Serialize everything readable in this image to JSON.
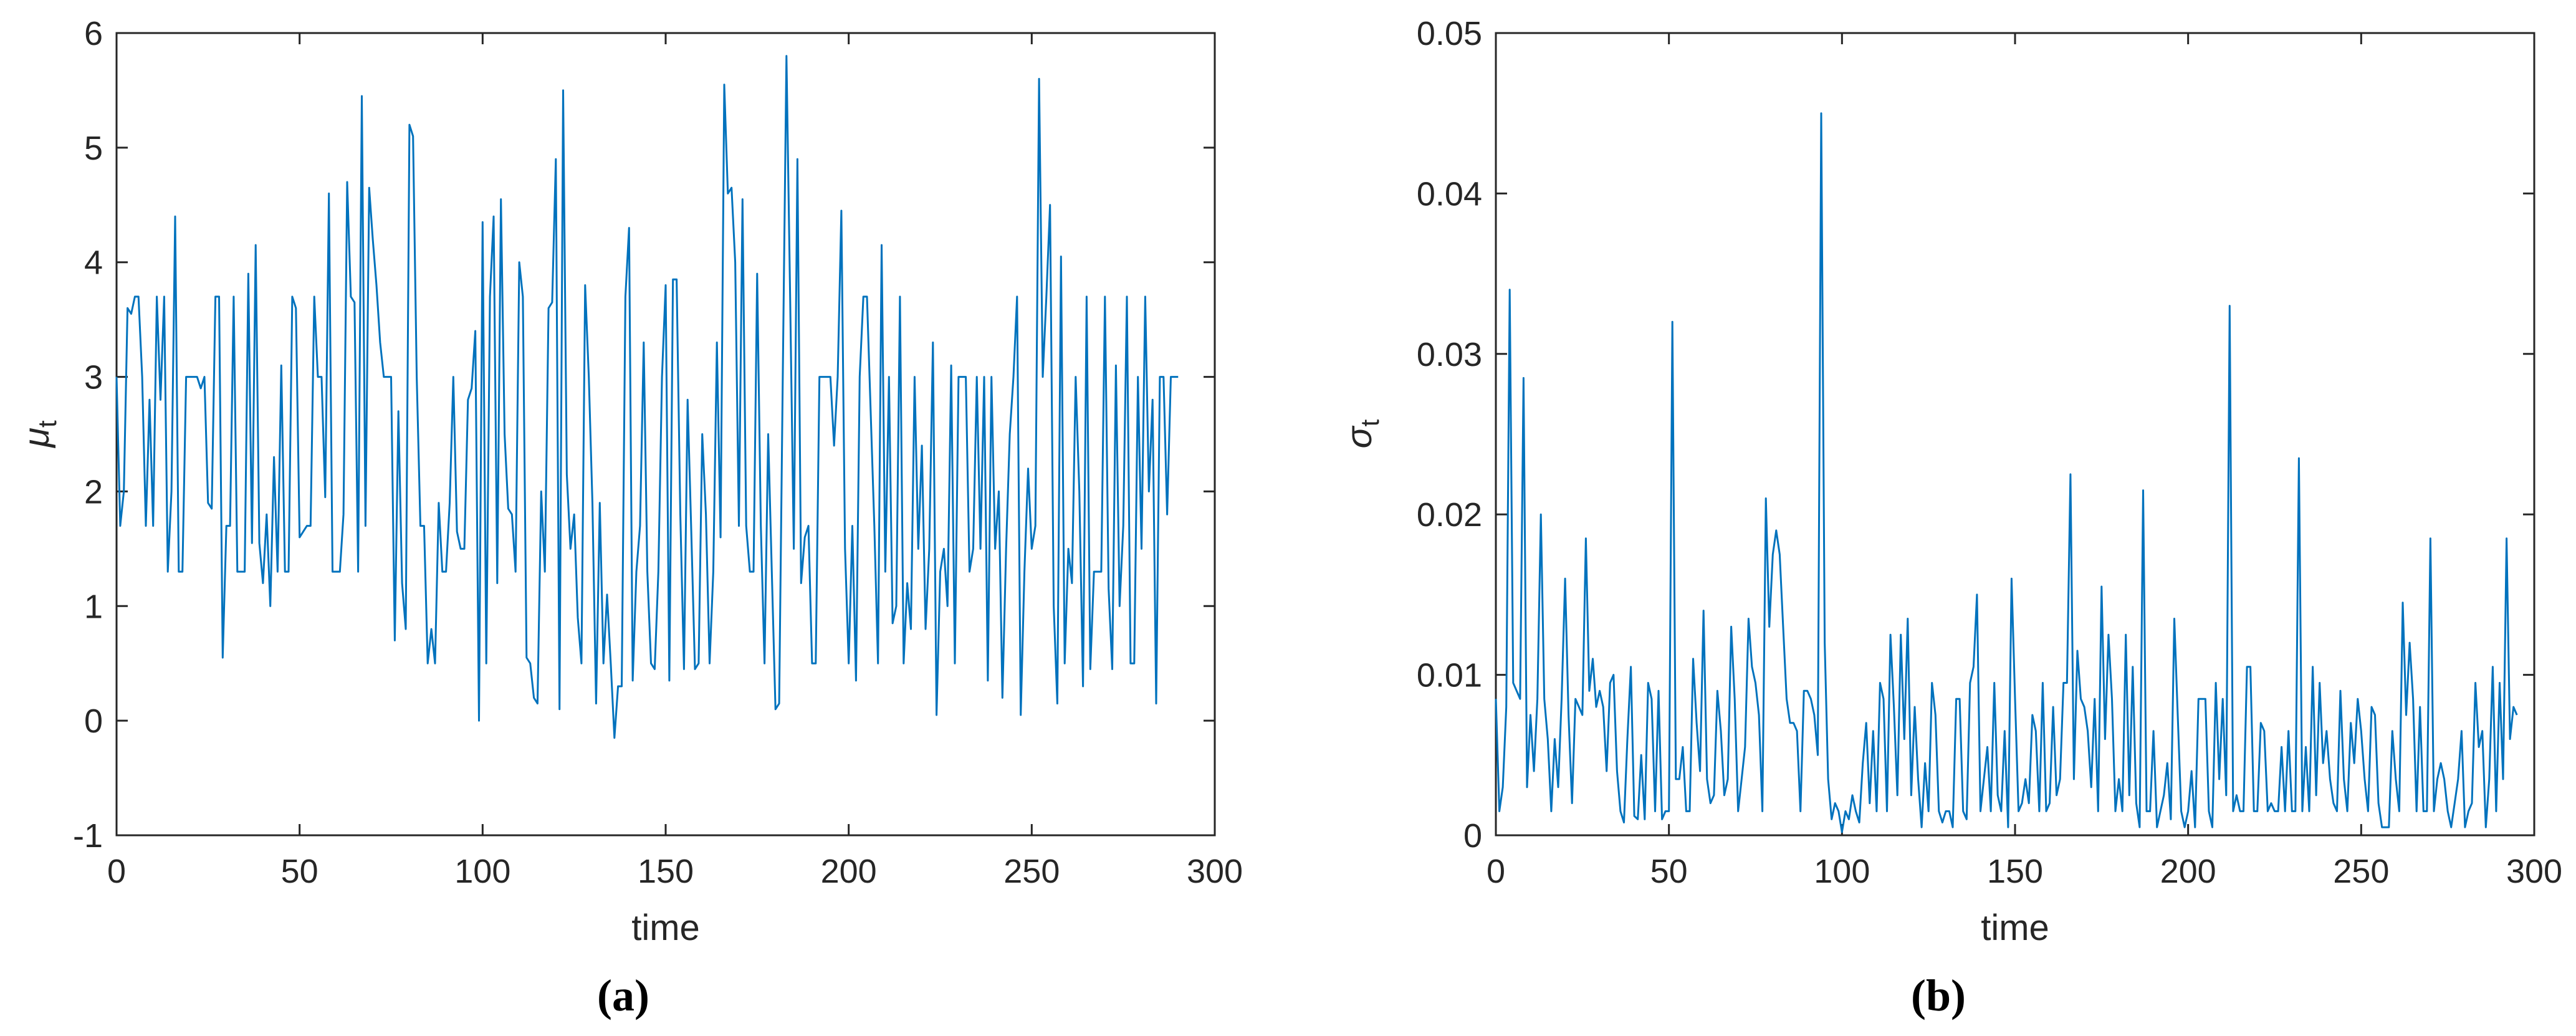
{
  "colors": {
    "series": "#0072BD",
    "axis": "#262626"
  },
  "panels": [
    {
      "sublabel": "(a)",
      "xlabel": "time",
      "ylabel_sym": "μ",
      "ylabel_sub": "t"
    },
    {
      "sublabel": "(b)",
      "xlabel": "time",
      "ylabel_sym": "σ",
      "ylabel_sub": "t"
    }
  ],
  "chart_data": [
    {
      "type": "line",
      "title": "",
      "xlabel": "time",
      "ylabel": "μt",
      "xlim": [
        0,
        300
      ],
      "ylim": [
        -1,
        6
      ],
      "xticks": [
        0,
        50,
        100,
        150,
        200,
        250,
        300
      ],
      "xtick_labels": [
        "0",
        "50",
        "100",
        "150",
        "200",
        "250",
        "300"
      ],
      "yticks": [
        -1,
        0,
        1,
        2,
        3,
        4,
        5,
        6
      ],
      "ytick_labels": [
        "-1",
        "0",
        "1",
        "2",
        "3",
        "4",
        "5",
        "6"
      ],
      "grid": false,
      "series": [
        {
          "x_start": 0,
          "x_step": 1,
          "y": [
            3.0,
            1.7,
            2.0,
            3.6,
            3.55,
            3.7,
            3.7,
            3.0,
            1.7,
            2.8,
            1.7,
            3.7,
            2.8,
            3.7,
            1.3,
            2.0,
            4.4,
            1.3,
            1.3,
            3.0,
            3.0,
            3.0,
            3.0,
            2.9,
            3.0,
            1.9,
            1.85,
            3.7,
            3.7,
            0.55,
            1.7,
            1.7,
            3.7,
            1.3,
            1.3,
            1.3,
            3.9,
            1.55,
            4.15,
            1.55,
            1.2,
            1.8,
            1.0,
            2.3,
            1.3,
            3.1,
            1.3,
            1.3,
            3.7,
            3.6,
            1.6,
            1.65,
            1.7,
            1.7,
            3.7,
            3.0,
            3.0,
            1.95,
            4.6,
            1.3,
            1.3,
            1.3,
            1.8,
            4.7,
            3.7,
            3.65,
            1.3,
            5.45,
            1.7,
            4.65,
            4.2,
            3.8,
            3.3,
            3.0,
            3.0,
            3.0,
            0.7,
            2.7,
            1.2,
            0.8,
            5.2,
            5.1,
            3.0,
            1.7,
            1.7,
            0.5,
            0.8,
            0.5,
            1.9,
            1.3,
            1.3,
            1.9,
            3.0,
            1.65,
            1.5,
            1.5,
            2.8,
            2.9,
            3.4,
            0.0,
            4.35,
            0.5,
            3.7,
            4.4,
            1.2,
            4.55,
            2.5,
            1.85,
            1.8,
            1.3,
            4.0,
            3.7,
            0.55,
            0.5,
            0.2,
            0.15,
            2.0,
            1.3,
            3.6,
            3.65,
            4.9,
            0.1,
            5.5,
            2.15,
            1.5,
            1.8,
            0.9,
            0.5,
            3.8,
            3.0,
            1.9,
            0.15,
            1.9,
            0.5,
            1.1,
            0.5,
            -0.15,
            0.3,
            0.3,
            3.7,
            4.3,
            0.35,
            1.3,
            1.7,
            3.3,
            1.3,
            0.5,
            0.45,
            1.3,
            3.0,
            3.8,
            0.35,
            3.85,
            3.85,
            1.8,
            0.45,
            2.8,
            1.65,
            0.45,
            0.5,
            2.5,
            1.8,
            0.5,
            1.3,
            3.3,
            1.6,
            5.55,
            4.6,
            4.65,
            4.0,
            1.7,
            4.55,
            1.7,
            1.3,
            1.3,
            3.9,
            1.7,
            0.5,
            2.5,
            1.3,
            0.1,
            0.15,
            3.0,
            5.8,
            3.7,
            1.5,
            4.9,
            1.2,
            1.6,
            1.7,
            0.5,
            0.5,
            3.0,
            3.0,
            3.0,
            3.0,
            2.4,
            3.0,
            4.45,
            1.5,
            0.5,
            1.7,
            0.35,
            3.0,
            3.7,
            3.7,
            2.7,
            1.7,
            0.5,
            4.15,
            1.3,
            3.0,
            0.85,
            1.0,
            3.7,
            0.5,
            1.2,
            0.8,
            3.0,
            1.5,
            2.4,
            0.8,
            1.5,
            3.3,
            0.05,
            1.3,
            1.5,
            1.0,
            3.1,
            0.5,
            3.0,
            3.0,
            3.0,
            1.3,
            1.5,
            3.0,
            1.5,
            3.0,
            0.35,
            3.0,
            1.5,
            2.0,
            0.2,
            1.5,
            2.5,
            3.0,
            3.7,
            0.05,
            1.3,
            2.2,
            1.5,
            1.7,
            5.6,
            3.0,
            3.7,
            4.5,
            1.0,
            0.15,
            4.05,
            0.5,
            1.5,
            1.2,
            3.0,
            2.0,
            0.3,
            3.7,
            0.45,
            1.3,
            1.3,
            1.3,
            3.7,
            1.15,
            0.45,
            3.1,
            1.0,
            1.7,
            3.7,
            0.5,
            0.5,
            3.0,
            1.5,
            3.7,
            2.0,
            2.8,
            0.15,
            3.0,
            3.0,
            1.8,
            3.0,
            3.0,
            3.0
          ]
        }
      ]
    },
    {
      "type": "line",
      "title": "",
      "xlabel": "time",
      "ylabel": "σt",
      "xlim": [
        0,
        300
      ],
      "ylim": [
        0,
        0.05
      ],
      "xticks": [
        0,
        50,
        100,
        150,
        200,
        250,
        300
      ],
      "xtick_labels": [
        "0",
        "50",
        "100",
        "150",
        "200",
        "250",
        "300"
      ],
      "yticks": [
        0,
        0.01,
        0.02,
        0.03,
        0.04,
        0.05
      ],
      "ytick_labels": [
        "0",
        "0.01",
        "0.02",
        "0.03",
        "0.04",
        "0.05"
      ],
      "grid": false,
      "series": [
        {
          "x_start": 0,
          "x_step": 1,
          "y": [
            0.0085,
            0.0015,
            0.003,
            0.008,
            0.034,
            0.0095,
            0.009,
            0.0085,
            0.0285,
            0.003,
            0.0075,
            0.004,
            0.0085,
            0.02,
            0.0085,
            0.006,
            0.0015,
            0.006,
            0.003,
            0.0085,
            0.016,
            0.0075,
            0.002,
            0.0085,
            0.008,
            0.0075,
            0.0185,
            0.009,
            0.011,
            0.008,
            0.009,
            0.008,
            0.004,
            0.0095,
            0.01,
            0.004,
            0.0015,
            0.0008,
            0.006,
            0.0105,
            0.0012,
            0.001,
            0.005,
            0.001,
            0.0095,
            0.0085,
            0.0015,
            0.009,
            0.001,
            0.0015,
            0.0015,
            0.032,
            0.0035,
            0.0035,
            0.0055,
            0.0015,
            0.0015,
            0.011,
            0.007,
            0.004,
            0.014,
            0.0035,
            0.002,
            0.0025,
            0.009,
            0.0065,
            0.0025,
            0.0035,
            0.013,
            0.0085,
            0.0015,
            0.0035,
            0.0055,
            0.0135,
            0.0105,
            0.0095,
            0.0075,
            0.0015,
            0.021,
            0.013,
            0.0175,
            0.019,
            0.0175,
            0.013,
            0.0085,
            0.007,
            0.007,
            0.0065,
            0.0015,
            0.009,
            0.009,
            0.0085,
            0.0075,
            0.005,
            0.045,
            0.012,
            0.0035,
            0.001,
            0.002,
            0.0015,
            0.0002,
            0.0015,
            0.001,
            0.0025,
            0.0015,
            0.0008,
            0.0045,
            0.007,
            0.002,
            0.0065,
            0.0015,
            0.0095,
            0.0085,
            0.0015,
            0.0125,
            0.008,
            0.0025,
            0.0125,
            0.006,
            0.0135,
            0.0025,
            0.008,
            0.0035,
            0.0005,
            0.0045,
            0.0015,
            0.0095,
            0.0075,
            0.0015,
            0.0008,
            0.0015,
            0.0015,
            0.0005,
            0.0085,
            0.0085,
            0.0015,
            0.001,
            0.0095,
            0.0105,
            0.015,
            0.0015,
            0.0035,
            0.0055,
            0.0015,
            0.0095,
            0.0025,
            0.0015,
            0.0065,
            0.0005,
            0.016,
            0.0085,
            0.0015,
            0.002,
            0.0035,
            0.002,
            0.0075,
            0.0065,
            0.0015,
            0.0095,
            0.0015,
            0.002,
            0.008,
            0.0025,
            0.0035,
            0.0095,
            0.0095,
            0.0225,
            0.0035,
            0.0115,
            0.0085,
            0.008,
            0.0065,
            0.003,
            0.0085,
            0.0015,
            0.0155,
            0.006,
            0.0125,
            0.0085,
            0.0015,
            0.0035,
            0.0015,
            0.0125,
            0.0025,
            0.0105,
            0.002,
            0.0005,
            0.0215,
            0.0015,
            0.0015,
            0.0065,
            0.0005,
            0.0015,
            0.0025,
            0.0045,
            0.001,
            0.0135,
            0.0075,
            0.0015,
            0.0005,
            0.0015,
            0.004,
            0.0005,
            0.0085,
            0.0085,
            0.0085,
            0.0015,
            0.0005,
            0.0095,
            0.0035,
            0.0085,
            0.0025,
            0.033,
            0.0015,
            0.0025,
            0.0015,
            0.0015,
            0.0105,
            0.0105,
            0.0015,
            0.0015,
            0.007,
            0.0065,
            0.0015,
            0.002,
            0.0015,
            0.0015,
            0.0055,
            0.0015,
            0.0065,
            0.0015,
            0.0015,
            0.0235,
            0.0015,
            0.0055,
            0.0015,
            0.0105,
            0.0025,
            0.0095,
            0.0045,
            0.0065,
            0.0035,
            0.002,
            0.0015,
            0.009,
            0.0035,
            0.0015,
            0.007,
            0.0045,
            0.0085,
            0.0065,
            0.0035,
            0.0015,
            0.008,
            0.0075,
            0.002,
            0.0005,
            0.0005,
            0.0005,
            0.0065,
            0.0035,
            0.0015,
            0.0145,
            0.0075,
            0.012,
            0.0085,
            0.0015,
            0.008,
            0.0015,
            0.0015,
            0.0185,
            0.0015,
            0.0035,
            0.0045,
            0.0035,
            0.0015,
            0.0005,
            0.002,
            0.0035,
            0.0065,
            0.0005,
            0.0015,
            0.002,
            0.0095,
            0.0055,
            0.0065,
            0.0005,
            0.0035,
            0.0105,
            0.0015,
            0.0095,
            0.0035,
            0.0185,
            0.006,
            0.008,
            0.0075
          ]
        }
      ]
    }
  ]
}
